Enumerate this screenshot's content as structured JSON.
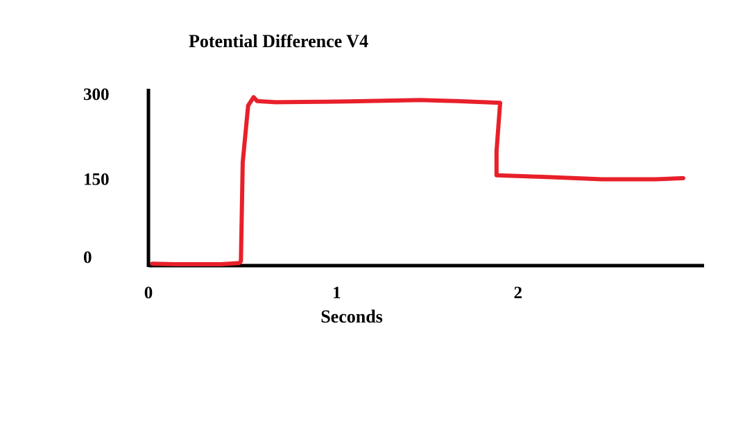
{
  "chart_data": {
    "type": "line",
    "title": "Potential Difference  V4",
    "xlabel": "Seconds",
    "ylabel": "",
    "xlim": [
      0,
      2.95
    ],
    "ylim": [
      0,
      300
    ],
    "xticks": [
      {
        "value": 0,
        "label": "0"
      },
      {
        "value": 1,
        "label": "1"
      },
      {
        "value": 2,
        "label": "2"
      }
    ],
    "yticks": [
      {
        "value": 0,
        "label": "0"
      },
      {
        "value": 150,
        "label": "150"
      },
      {
        "value": 300,
        "label": "300"
      }
    ],
    "grid": false,
    "legend": "none",
    "series": [
      {
        "color": "#e8202a",
        "x": [
          0.02,
          0.15,
          0.4,
          0.5,
          0.51,
          0.52,
          0.55,
          0.58,
          0.6,
          0.7,
          1.0,
          1.2,
          1.5,
          1.7,
          1.94,
          1.92,
          1.92,
          2.2,
          2.5,
          2.8,
          2.95
        ],
        "y": [
          1,
          0,
          0,
          2,
          5,
          180,
          280,
          295,
          288,
          286,
          287,
          288,
          290,
          288,
          285,
          200,
          157,
          154,
          150,
          150,
          152
        ]
      }
    ]
  },
  "colors": {
    "axis": "#000000",
    "series": "#e8202a",
    "background": "#ffffff"
  }
}
